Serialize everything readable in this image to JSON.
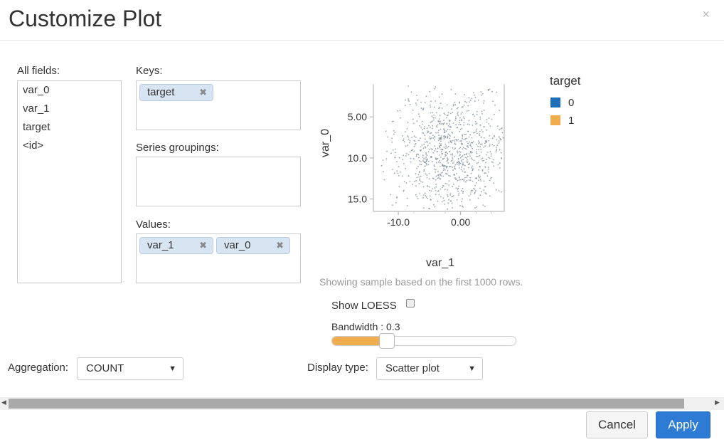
{
  "dialog": {
    "title": "Customize Plot",
    "close": "×"
  },
  "all_fields": {
    "label": "All fields:",
    "items": [
      "var_0",
      "var_1",
      "target",
      "<id>"
    ]
  },
  "keys": {
    "label": "Keys:",
    "chips": [
      "target"
    ]
  },
  "series_groupings": {
    "label": "Series groupings:"
  },
  "values": {
    "label": "Values:",
    "chips": [
      "var_1",
      "var_0"
    ]
  },
  "chip_remove": "✖",
  "plot": {
    "ylabel": "var_0",
    "xlabel": "var_1",
    "yticks": [
      "15.0",
      "10.0",
      "5.00"
    ],
    "xticks": [
      "-10.0",
      "0.00"
    ],
    "note": "Showing sample based on the first 1000 rows."
  },
  "legend": {
    "title": "target",
    "items": [
      {
        "label": "0",
        "color": "#1f6fb8"
      },
      {
        "label": "1",
        "color": "#f0ad4e"
      }
    ]
  },
  "show_loess": {
    "label": "Show LOESS",
    "checked": false
  },
  "bandwidth": {
    "label": "Bandwidth : 0.3",
    "value": 0.3
  },
  "aggregation": {
    "label": "Aggregation:",
    "value": "COUNT"
  },
  "display_type": {
    "label": "Display type:",
    "value": "Scatter plot"
  },
  "caret": "▼",
  "buttons": {
    "cancel": "Cancel",
    "apply": "Apply"
  },
  "chart_data": {
    "type": "scatter",
    "xlabel": "var_1",
    "ylabel": "var_0",
    "xlim": [
      -14,
      7
    ],
    "ylim": [
      3.5,
      19
    ],
    "xticks": [
      -10.0,
      0.0
    ],
    "yticks": [
      5.0,
      10.0,
      15.0
    ],
    "sample": {
      "count": 1000,
      "x_center": -1.5,
      "x_spread": 4.6,
      "y_center": 10.5,
      "y_spread": 3.6
    }
  }
}
